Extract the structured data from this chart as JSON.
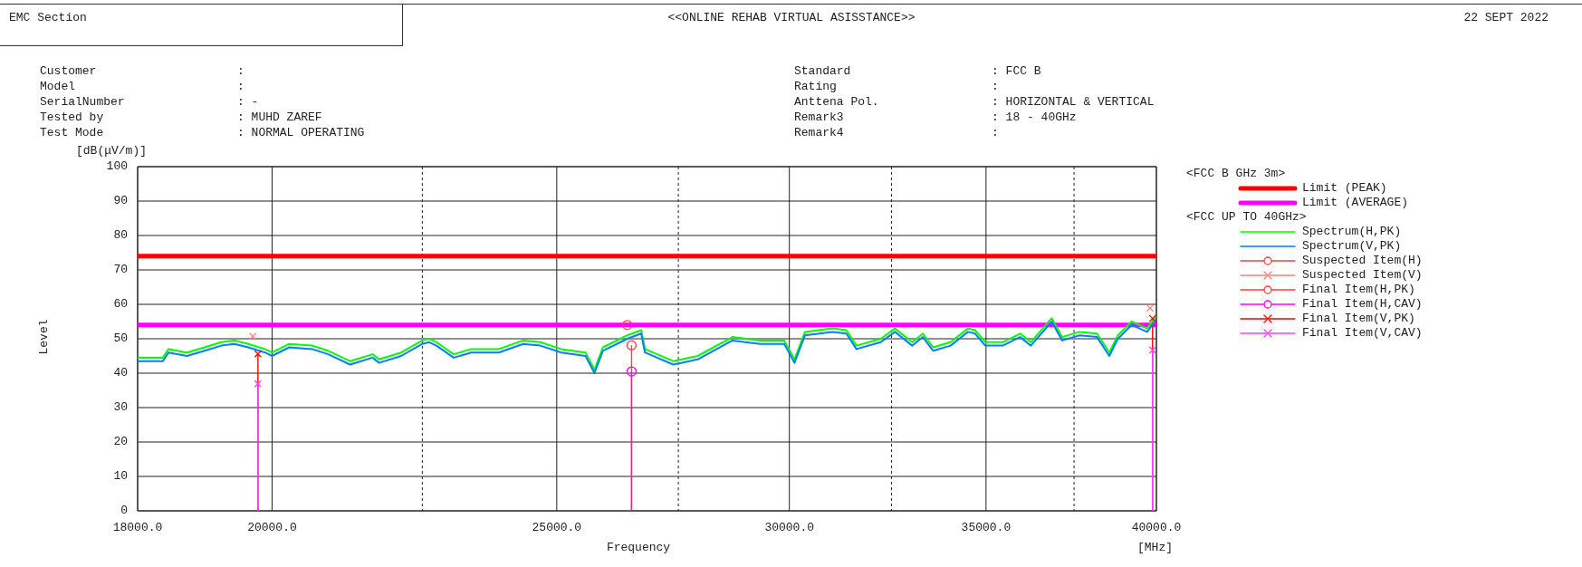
{
  "chart_data": {
    "type": "line",
    "title": "<<ONLINE REHAB VIRTUAL ASISSTANCE>>",
    "xlabel": "Frequency",
    "ylabel": "Level",
    "legend_title": "<FCC B GHz 3m>",
    "legend": "right",
    "log": "x",
    "grid": true,
    "xlim": [
      18000,
      40000
    ],
    "ylim": [
      0,
      100
    ],
    "xticks": [
      {
        "value": 18000,
        "label": "18000.0"
      },
      {
        "value": 20000,
        "label": "20000.0"
      },
      {
        "value": 22500,
        "label": null
      },
      {
        "value": 25000,
        "label": "25000.0"
      },
      {
        "value": 27500,
        "label": null
      },
      {
        "value": 30000,
        "label": "30000.0"
      },
      {
        "value": 32500,
        "label": null
      },
      {
        "value": 35000,
        "label": "35000.0"
      },
      {
        "value": 37500,
        "label": null
      },
      {
        "value": 40000,
        "label": "40000.0"
      }
    ],
    "yticks": [
      0,
      10,
      20,
      30,
      40,
      50,
      60,
      70,
      80,
      90,
      100
    ],
    "ref_lines": [
      {
        "axis": "y",
        "value": 74,
        "label": "Limit (PEAK)",
        "color": "#ff0000"
      },
      {
        "axis": "y",
        "value": 54,
        "label": "Limit (AVERAGE)",
        "color": "#ff00ff"
      }
    ],
    "series": [
      {
        "name": "Spectrum(H,PK)",
        "marker": "none",
        "color": "#00ff00",
        "x": [
          18000,
          18360,
          18440,
          18710,
          18970,
          19220,
          19420,
          19630,
          19890,
          20000,
          20270,
          20640,
          20900,
          21260,
          21640,
          21750,
          22130,
          22500,
          22620,
          22750,
          23060,
          23380,
          23890,
          24350,
          24680,
          25090,
          25570,
          25750,
          25920,
          26420,
          26710,
          26790,
          27390,
          27920,
          28690,
          29320,
          29880,
          30120,
          30370,
          31030,
          31370,
          31620,
          32230,
          32590,
          33030,
          33310,
          33580,
          34040,
          34510,
          34700,
          34980,
          35460,
          35950,
          36250,
          36850,
          37150,
          37660,
          38180,
          38550,
          38810,
          39230,
          39710,
          39990
        ],
        "values": [
          44.5,
          44.5,
          47,
          46,
          47.5,
          49,
          49.5,
          48.5,
          47,
          46,
          48.5,
          48,
          46.5,
          43.5,
          45.5,
          44,
          46,
          49.5,
          50,
          49,
          45.5,
          47,
          47,
          49.5,
          49,
          47,
          46,
          41,
          47.5,
          51,
          52.5,
          47,
          43.5,
          45,
          50.5,
          49.5,
          49.5,
          44,
          52,
          53,
          52.5,
          48,
          50,
          53,
          49,
          51.5,
          47.5,
          49,
          53,
          52.5,
          49,
          49,
          51.5,
          49,
          56,
          50.5,
          52,
          51.5,
          46,
          51,
          55,
          53,
          56.5
        ]
      },
      {
        "name": "Spectrum(V,PK)",
        "marker": "none",
        "color": "#0080ff",
        "x": [
          18000,
          18360,
          18440,
          18710,
          18970,
          19220,
          19420,
          19630,
          19890,
          20000,
          20270,
          20640,
          20900,
          21260,
          21640,
          21750,
          22130,
          22500,
          22620,
          22750,
          23060,
          23380,
          23890,
          24350,
          24680,
          25090,
          25570,
          25750,
          25920,
          26420,
          26710,
          26790,
          27390,
          27920,
          28690,
          29320,
          29880,
          30120,
          30370,
          31030,
          31370,
          31620,
          32230,
          32590,
          33030,
          33310,
          33580,
          34040,
          34510,
          34700,
          34980,
          35460,
          35950,
          36250,
          36850,
          37150,
          37660,
          38180,
          38550,
          38810,
          39230,
          39710,
          39990
        ],
        "values": [
          43.5,
          43.5,
          46,
          45,
          46.5,
          48,
          48.5,
          47.5,
          46,
          45,
          47.5,
          47,
          45.5,
          42.5,
          44.5,
          43,
          45,
          48.5,
          49,
          48,
          44.5,
          46,
          46,
          48.5,
          48,
          46,
          45,
          40,
          46.5,
          50,
          51.5,
          46,
          42.5,
          44,
          49.5,
          48.5,
          48.5,
          43,
          51,
          52,
          51.5,
          47,
          49,
          52,
          48,
          50.5,
          46.5,
          48,
          52,
          51.5,
          48,
          48,
          50.5,
          48,
          55,
          49.5,
          51,
          50.5,
          45,
          50,
          54,
          52,
          55.5
        ]
      },
      {
        "name": "Suspected Item(H)",
        "type": "scatter",
        "marker": "circle",
        "color": "#ff4040",
        "x": [
          26420
        ],
        "values": [
          54.0
        ]
      },
      {
        "name": "Suspected Item(V)",
        "type": "scatter",
        "marker": "cross",
        "color": "#ff8080",
        "x": [
          19700,
          39800
        ],
        "values": [
          50.7,
          58.9
        ]
      },
      {
        "name": "Final Item(H,PK)",
        "type": "lollipop",
        "marker": "circle",
        "color": "#ff4040",
        "x": [
          26510
        ],
        "values": [
          48.1
        ]
      },
      {
        "name": "Final Item(H,CAV)",
        "type": "lollipop",
        "marker": "circle",
        "color": "#ff00ff",
        "x": [
          26510
        ],
        "values": [
          40.5
        ]
      },
      {
        "name": "Final Item(V,PK)",
        "type": "lollipop",
        "marker": "cross",
        "color": "#ff0000",
        "x": [
          19780,
          39880
        ],
        "values": [
          45.6,
          55.9
        ]
      },
      {
        "name": "Final Item(V,CAV)",
        "type": "lollipop",
        "marker": "cross",
        "color": "#ff40ff",
        "x": [
          19780,
          39880
        ],
        "values": [
          36.9,
          46.7
        ]
      }
    ],
    "annotations": [
      "EMC Section",
      "22 SEPT 2022",
      "Customer",
      ":",
      "Model",
      ":",
      "SerialNumber",
      ": -",
      "Tested by",
      ": MUHD ZAREF",
      "Test Mode",
      ": NORMAL OPERATING",
      "Standard",
      ": FCC B",
      "Rating",
      ":",
      "Anttena Pol.",
      ": HORIZONTAL & VERTICAL",
      "Remark3",
      ": 18 - 40GHz",
      "Remark4",
      ":",
      "[dB(μV/m)]",
      "[MHz]",
      "<FCC UP TO 40GHz>"
    ]
  }
}
